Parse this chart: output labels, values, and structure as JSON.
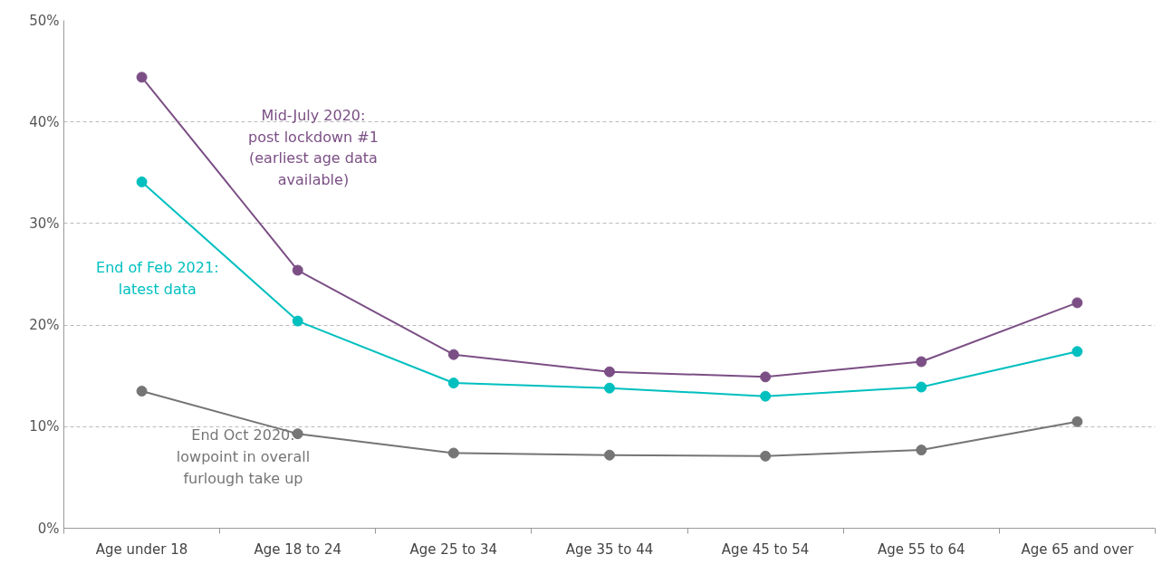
{
  "chart_data": {
    "type": "line",
    "categories": [
      "Age under 18",
      "Age 18 to 24",
      "Age 25 to 34",
      "Age 35 to 44",
      "Age 45 to 54",
      "Age 55 to 64",
      "Age 65 and over"
    ],
    "series": [
      {
        "name": "Mid-July 2020:\npost lockdown #1\n(earliest age data\navailable)",
        "color": "#7b4f85",
        "values": [
          44.4,
          25.4,
          17.1,
          15.4,
          14.9,
          16.4,
          22.2
        ]
      },
      {
        "name": "End of Feb 2021:\nlatest data",
        "color": "#00bfbf",
        "values": [
          34.1,
          20.4,
          14.3,
          13.8,
          13.0,
          13.9,
          17.4
        ]
      },
      {
        "name": "End Oct 2020:\nlowpoint in overall\nfurlough take up",
        "color": "#757575",
        "values": [
          13.5,
          9.3,
          7.4,
          7.2,
          7.1,
          7.7,
          10.5
        ]
      }
    ],
    "ylim": [
      0,
      50
    ],
    "yticks": [
      {
        "value": 0,
        "label": "0%"
      },
      {
        "value": 10,
        "label": "10%"
      },
      {
        "value": 20,
        "label": "20%"
      },
      {
        "value": 30,
        "label": "30%"
      },
      {
        "value": 40,
        "label": "40%"
      },
      {
        "value": 50,
        "label": "50%"
      }
    ],
    "grid": "y",
    "marker": "circle",
    "line_style": "solid"
  }
}
